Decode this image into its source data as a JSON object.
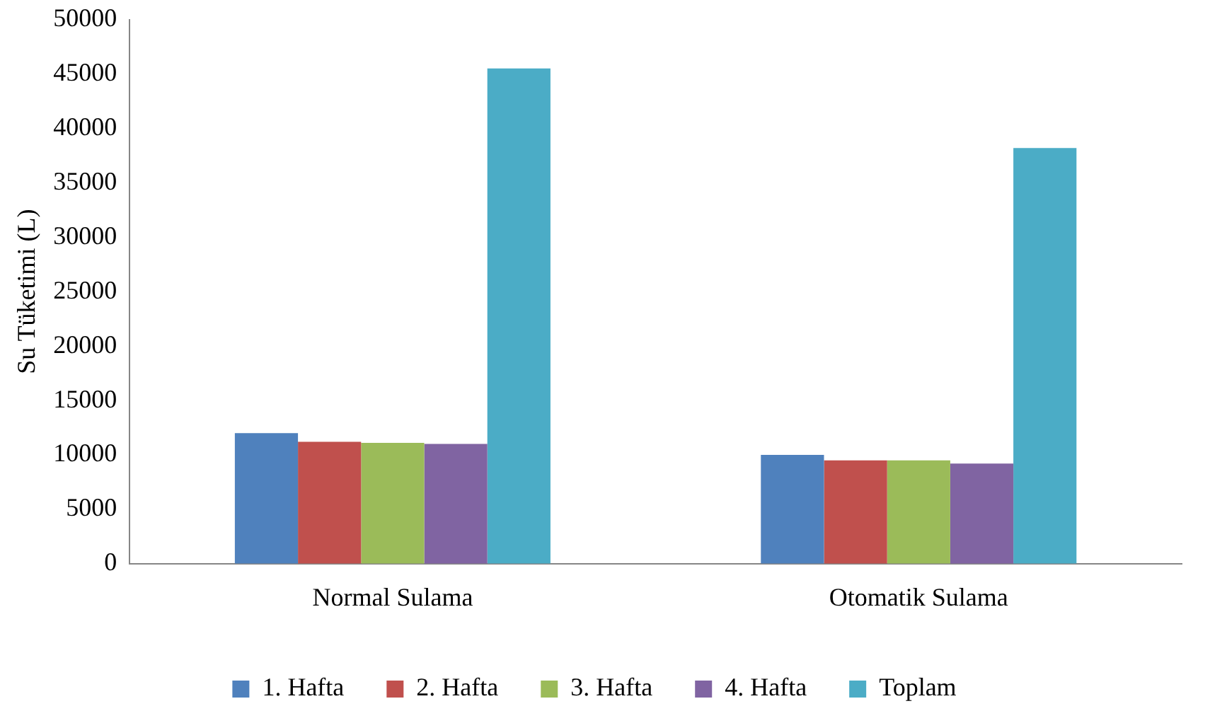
{
  "chart_data": {
    "type": "bar",
    "ylabel": "Su Tüketimi (L)",
    "categories": [
      "Normal Sulama",
      "Otomatik Sulama"
    ],
    "series": [
      {
        "name": "1. Hafta",
        "color": "#4f81bd",
        "values": [
          12000,
          10000
        ]
      },
      {
        "name": "2. Hafta",
        "color": "#c0504d",
        "values": [
          11200,
          9500
        ]
      },
      {
        "name": "3. Hafta",
        "color": "#9bbb59",
        "values": [
          11100,
          9500
        ]
      },
      {
        "name": "4. Hafta",
        "color": "#8064a2",
        "values": [
          11000,
          9200
        ]
      },
      {
        "name": "Toplam",
        "color": "#4bacc6",
        "values": [
          45500,
          38200
        ]
      }
    ],
    "ylim": [
      0,
      50000
    ],
    "yticks": [
      0,
      5000,
      10000,
      15000,
      20000,
      25000,
      30000,
      35000,
      40000,
      45000,
      50000
    ],
    "grid": false,
    "legend": "bottom"
  }
}
